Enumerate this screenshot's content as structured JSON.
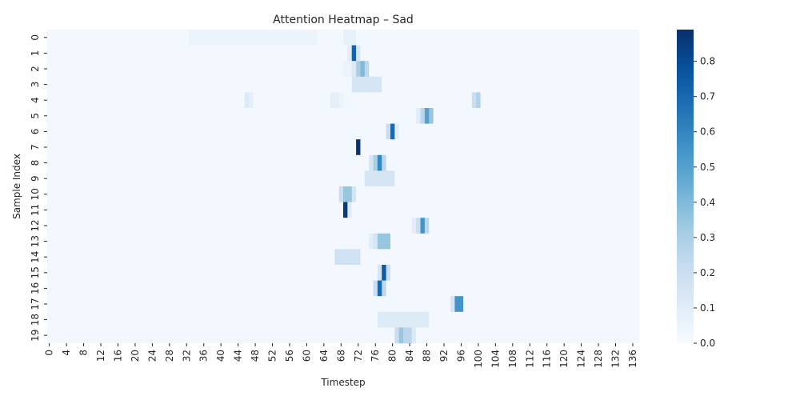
{
  "chart_data": {
    "type": "heatmap",
    "title": "Attention Heatmap – Sad",
    "xlabel": "Timestep",
    "ylabel": "Sample Index",
    "n_rows": 20,
    "n_cols": 138,
    "x_tick_step": 4,
    "x_ticks": [
      "0",
      "4",
      "8",
      "12",
      "16",
      "20",
      "24",
      "28",
      "32",
      "36",
      "40",
      "44",
      "48",
      "52",
      "56",
      "60",
      "64",
      "68",
      "72",
      "76",
      "80",
      "84",
      "88",
      "92",
      "96",
      "100",
      "104",
      "108",
      "112",
      "116",
      "120",
      "124",
      "128",
      "132",
      "136"
    ],
    "y_ticks": [
      "0",
      "1",
      "2",
      "3",
      "4",
      "5",
      "6",
      "7",
      "8",
      "9",
      "10",
      "11",
      "12",
      "13",
      "14",
      "15",
      "16",
      "17",
      "18",
      "19"
    ],
    "baseline": 0.02,
    "cells": [
      [
        [
          33,
          62,
          0.05
        ],
        [
          69,
          71,
          0.07
        ]
      ],
      [
        [
          70,
          70,
          0.1
        ],
        [
          71,
          71,
          0.72
        ],
        [
          72,
          72,
          0.15
        ]
      ],
      [
        [
          69,
          70,
          0.05
        ],
        [
          71,
          71,
          0.12
        ],
        [
          72,
          72,
          0.3
        ],
        [
          73,
          73,
          0.4
        ],
        [
          74,
          74,
          0.25
        ]
      ],
      [
        [
          71,
          77,
          0.15
        ]
      ],
      [
        [
          46,
          46,
          0.12
        ],
        [
          47,
          47,
          0.08
        ],
        [
          66,
          67,
          0.08
        ],
        [
          68,
          68,
          0.05
        ],
        [
          69,
          70,
          0.03
        ],
        [
          99,
          99,
          0.2
        ],
        [
          100,
          100,
          0.28
        ]
      ],
      [
        [
          86,
          86,
          0.1
        ],
        [
          87,
          87,
          0.25
        ],
        [
          88,
          88,
          0.5
        ],
        [
          89,
          89,
          0.35
        ]
      ],
      [
        [
          79,
          79,
          0.2
        ],
        [
          80,
          80,
          0.7
        ],
        [
          81,
          81,
          0.1
        ]
      ],
      [
        [
          72,
          72,
          0.88
        ]
      ],
      [
        [
          75,
          75,
          0.15
        ],
        [
          76,
          76,
          0.3
        ],
        [
          77,
          77,
          0.6
        ],
        [
          78,
          78,
          0.25
        ]
      ],
      [
        [
          74,
          80,
          0.15
        ]
      ],
      [
        [
          68,
          68,
          0.2
        ],
        [
          69,
          70,
          0.35
        ],
        [
          71,
          71,
          0.15
        ]
      ],
      [
        [
          69,
          69,
          0.85
        ],
        [
          70,
          70,
          0.1
        ]
      ],
      [
        [
          85,
          85,
          0.1
        ],
        [
          86,
          86,
          0.2
        ],
        [
          87,
          87,
          0.55
        ],
        [
          88,
          88,
          0.25
        ]
      ],
      [
        [
          75,
          75,
          0.1
        ],
        [
          76,
          76,
          0.15
        ],
        [
          77,
          79,
          0.35
        ]
      ],
      [
        [
          67,
          72,
          0.18
        ]
      ],
      [
        [
          77,
          77,
          0.15
        ],
        [
          78,
          78,
          0.75
        ],
        [
          79,
          79,
          0.2
        ]
      ],
      [
        [
          76,
          76,
          0.2
        ],
        [
          77,
          77,
          0.7
        ],
        [
          78,
          78,
          0.25
        ]
      ],
      [
        [
          94,
          94,
          0.15
        ],
        [
          95,
          96,
          0.55
        ]
      ],
      [
        [
          77,
          88,
          0.12
        ]
      ],
      [
        [
          81,
          81,
          0.2
        ],
        [
          82,
          82,
          0.35
        ],
        [
          83,
          84,
          0.25
        ],
        [
          85,
          85,
          0.12
        ]
      ]
    ],
    "colorbar": {
      "min": 0.0,
      "max": 0.89,
      "ticks": [
        "0.0",
        "0.1",
        "0.2",
        "0.3",
        "0.4",
        "0.5",
        "0.6",
        "0.7",
        "0.8"
      ],
      "colormap": "Blues",
      "stops": [
        "#f7fbff",
        "#deebf7",
        "#c6dbef",
        "#9ecae1",
        "#6baed6",
        "#4292c6",
        "#2171b5",
        "#08519c",
        "#08306b"
      ]
    }
  }
}
